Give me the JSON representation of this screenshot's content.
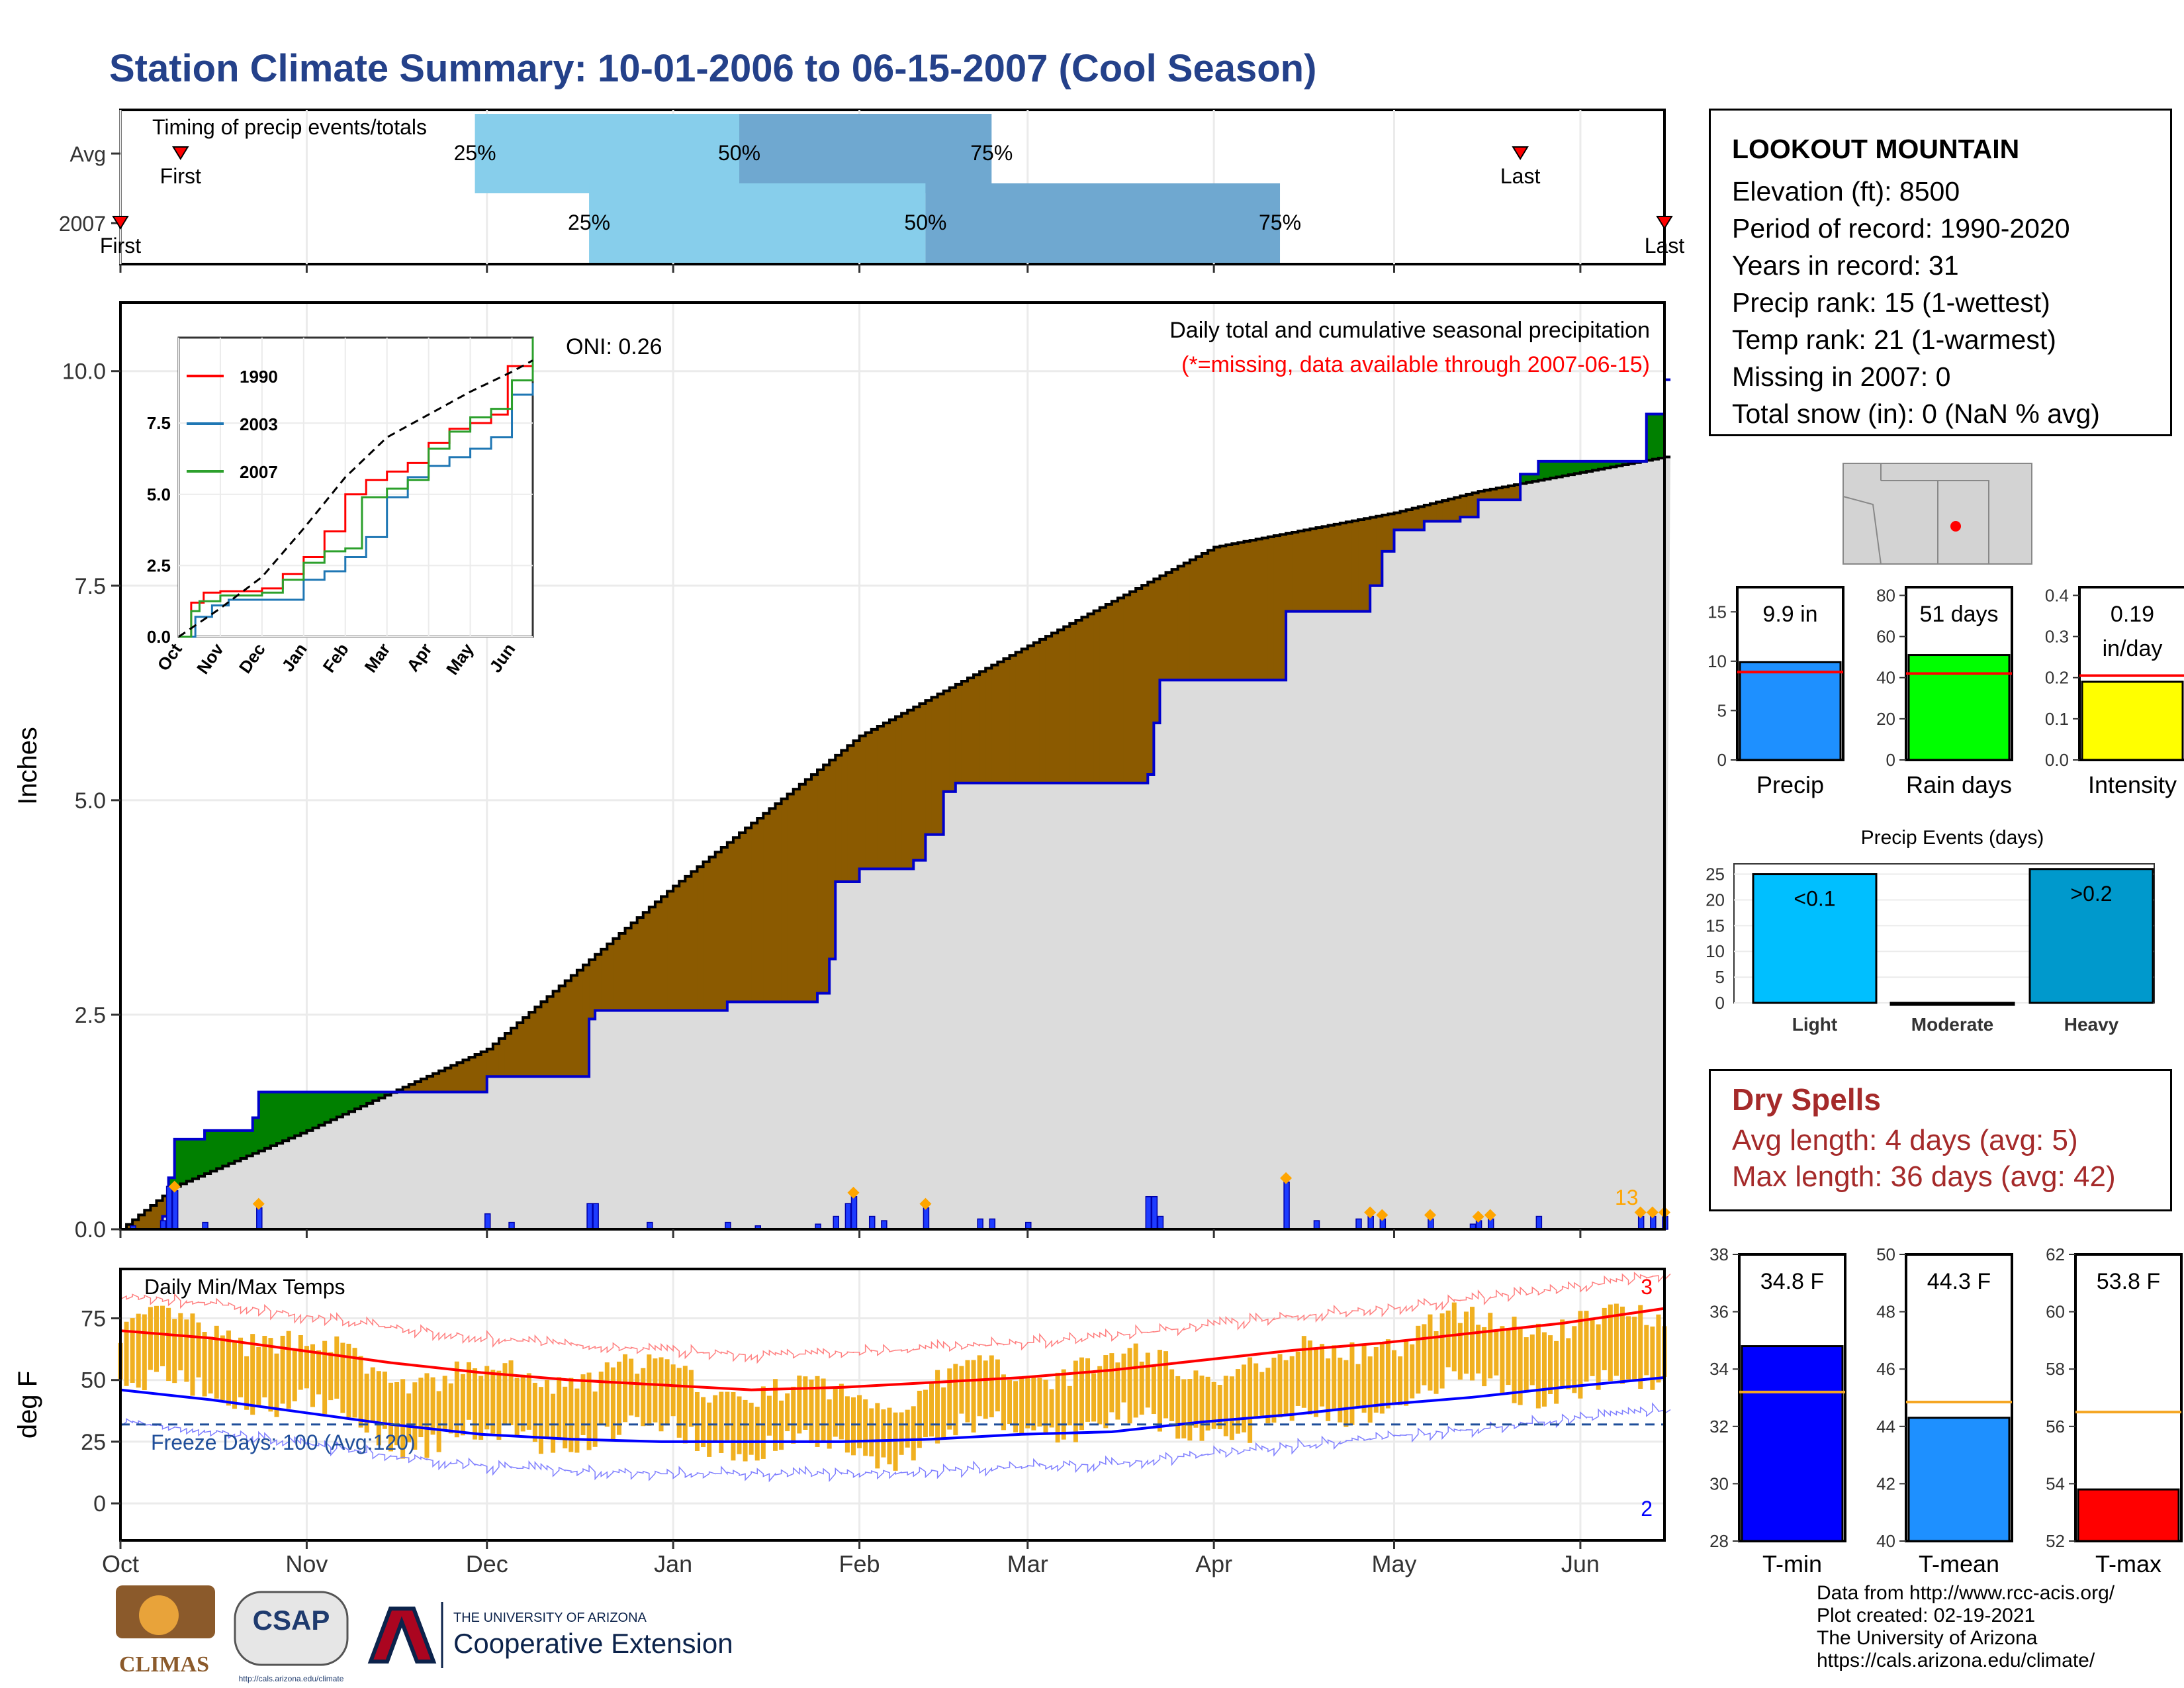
{
  "title": "Station Climate Summary: 10-01-2006 to 06-15-2007 (Cool Season)",
  "station": {
    "name": "LOOKOUT MOUNTAIN",
    "lines": [
      "Elevation (ft): 8500",
      "Period of record: 1990-2020",
      "Years in record: 31",
      "Precip rank: 15 (1-wettest)",
      "Temp rank: 21 (1-warmest)",
      "Missing in 2007: 0",
      "Total snow (in): 0 (NaN % avg)"
    ]
  },
  "dry_spells": {
    "title": "Dry Spells",
    "avg": "Avg length: 4 days (avg: 5)",
    "max": "Max length: 36 days (avg: 42)"
  },
  "footer": {
    "lines": [
      "Data from http://www.rcc-acis.org/",
      "Plot created: 02-19-2021",
      "The University of Arizona",
      "https://cals.arizona.edu/climate/"
    ],
    "logos": {
      "climas": "CLIMAS",
      "csap": "CSAP",
      "csap_url": "http://cals.arizona.edu/climate",
      "ua_small": "THE UNIVERSITY OF ARIZONA",
      "ua_big": "Cooperative Extension"
    }
  },
  "colors": {
    "title": "#24418a",
    "q1": "#87ceeb",
    "q2": "#6fa8d0",
    "above": "#8b5a00",
    "below": "#008000",
    "cum2007": "#0000cd",
    "fill": "#dcdcdc",
    "bars": "#1e3cff",
    "marker": "#ffa500",
    "tbar": "#f0b020",
    "tmax": "#ff0000",
    "tmin": "#0000ff"
  },
  "chart_data": [
    {
      "type": "bar",
      "name": "timing",
      "title": "Timing of precip events/totals",
      "rows": [
        "Avg",
        "2007"
      ],
      "labels": {
        "first": "First",
        "last": "Last",
        "p25": "25%",
        "p50": "50%",
        "p75": "75%"
      },
      "avg": {
        "first": "2006-10-11",
        "p25": "2006-11-29",
        "p50": "2007-01-12",
        "p75": "2007-02-23",
        "last": "2007-05-22"
      },
      "y2007": {
        "first": "2006-10-01",
        "p25": "2006-12-18",
        "p50": "2007-02-12",
        "p75": "2007-04-12",
        "last": "2007-06-15"
      }
    },
    {
      "type": "area",
      "name": "precip",
      "title": "Daily total and cumulative seasonal precipitation",
      "subtitle": "(*=missing, data available through 2007-06-15)",
      "oni": "ONI: 0.26",
      "ylabel": "Inches",
      "ylim": [
        0,
        10.8
      ],
      "yticks": [
        0,
        2.5,
        5,
        7.5,
        10
      ],
      "ytick_labels": [
        "0.0",
        "2.5",
        "5.0",
        "7.5",
        "10.0"
      ],
      "xlim": [
        "2006-10-01",
        "2007-06-15"
      ],
      "xtick_labels": [
        "Oct",
        "Nov",
        "Dec",
        "Jan",
        "Feb",
        "Mar",
        "Apr",
        "May",
        "Jun"
      ],
      "xtick_dates": [
        "2006-10-01",
        "2006-11-01",
        "2006-12-01",
        "2007-01-01",
        "2007-02-01",
        "2007-03-01",
        "2007-04-01",
        "2007-05-01",
        "2007-06-01"
      ],
      "avg_cumulative": {
        "x": [
          "2006-10-01",
          "2006-10-10",
          "2006-11-01",
          "2006-12-01",
          "2007-01-01",
          "2007-02-01",
          "2007-03-01",
          "2007-04-01",
          "2007-05-01",
          "2007-05-15",
          "2007-06-15"
        ],
        "y": [
          0,
          0.5,
          1.15,
          2.1,
          4.0,
          5.75,
          6.8,
          7.95,
          8.35,
          8.6,
          9.0
        ]
      },
      "cumulative_2007": {
        "x": [
          "2006-10-01",
          "2006-10-08",
          "2006-10-09",
          "2006-10-10",
          "2006-10-15",
          "2006-10-23",
          "2006-10-24",
          "2006-11-01",
          "2006-11-30",
          "2006-12-01",
          "2006-12-18",
          "2006-12-19",
          "2007-01-10",
          "2007-01-25",
          "2007-01-27",
          "2007-01-28",
          "2007-02-01",
          "2007-02-10",
          "2007-02-12",
          "2007-02-15",
          "2007-02-17",
          "2007-03-21",
          "2007-03-22",
          "2007-03-23",
          "2007-04-12",
          "2007-04-13",
          "2007-04-27",
          "2007-04-29",
          "2007-05-01",
          "2007-05-06",
          "2007-05-12",
          "2007-05-15",
          "2007-05-22",
          "2007-05-25",
          "2007-06-10",
          "2007-06-12",
          "2007-06-15"
        ],
        "y": [
          0,
          0.15,
          0.6,
          1.05,
          1.15,
          1.3,
          1.6,
          1.6,
          1.6,
          1.78,
          2.45,
          2.55,
          2.65,
          2.75,
          3.15,
          4.05,
          4.2,
          4.3,
          4.6,
          5.1,
          5.2,
          5.3,
          5.9,
          6.4,
          6.4,
          7.2,
          7.5,
          7.9,
          8.15,
          8.25,
          8.3,
          8.5,
          8.8,
          8.95,
          8.95,
          9.5,
          9.9
        ]
      },
      "daily_events": [
        {
          "date": "2006-10-03",
          "in": 0.04
        },
        {
          "date": "2006-10-08",
          "in": 0.1
        },
        {
          "date": "2006-10-09",
          "in": 0.5
        },
        {
          "date": "2006-10-10",
          "in": 0.45
        },
        {
          "date": "2006-10-15",
          "in": 0.08
        },
        {
          "date": "2006-10-24",
          "in": 0.25
        },
        {
          "date": "2006-12-01",
          "in": 0.18
        },
        {
          "date": "2006-12-05",
          "in": 0.08
        },
        {
          "date": "2006-12-18",
          "in": 0.3
        },
        {
          "date": "2006-12-19",
          "in": 0.3
        },
        {
          "date": "2006-12-28",
          "in": 0.08
        },
        {
          "date": "2007-01-10",
          "in": 0.08
        },
        {
          "date": "2007-01-15",
          "in": 0.04
        },
        {
          "date": "2007-01-25",
          "in": 0.06
        },
        {
          "date": "2007-01-28",
          "in": 0.15
        },
        {
          "date": "2007-01-30",
          "in": 0.3
        },
        {
          "date": "2007-01-31",
          "in": 0.38
        },
        {
          "date": "2007-02-03",
          "in": 0.15
        },
        {
          "date": "2007-02-05",
          "in": 0.1
        },
        {
          "date": "2007-02-12",
          "in": 0.25
        },
        {
          "date": "2007-02-21",
          "in": 0.12
        },
        {
          "date": "2007-02-23",
          "in": 0.12
        },
        {
          "date": "2007-03-01",
          "in": 0.08
        },
        {
          "date": "2007-03-21",
          "in": 0.38
        },
        {
          "date": "2007-03-22",
          "in": 0.38
        },
        {
          "date": "2007-03-23",
          "in": 0.15
        },
        {
          "date": "2007-04-13",
          "in": 0.55
        },
        {
          "date": "2007-04-18",
          "in": 0.1
        },
        {
          "date": "2007-04-25",
          "in": 0.12
        },
        {
          "date": "2007-04-27",
          "in": 0.15
        },
        {
          "date": "2007-04-29",
          "in": 0.12
        },
        {
          "date": "2007-05-07",
          "in": 0.12
        },
        {
          "date": "2007-05-14",
          "in": 0.06
        },
        {
          "date": "2007-05-15",
          "in": 0.1
        },
        {
          "date": "2007-05-17",
          "in": 0.12
        },
        {
          "date": "2007-05-25",
          "in": 0.15
        },
        {
          "date": "2007-06-11",
          "in": 0.15
        },
        {
          "date": "2007-06-13",
          "in": 0.15
        },
        {
          "date": "2007-06-15",
          "in": 0.15
        }
      ],
      "heavy_marker_dates": [
        "2006-10-10",
        "2006-10-24",
        "2007-01-31",
        "2007-02-12",
        "2007-04-13",
        "2007-04-27",
        "2007-04-29",
        "2007-05-07",
        "2007-05-15",
        "2007-05-17",
        "2007-06-11",
        "2007-06-13",
        "2007-06-15"
      ],
      "marker_count_label": "13"
    },
    {
      "type": "line",
      "name": "inset",
      "xtick_labels": [
        "Oct",
        "Nov",
        "Dec",
        "Jan",
        "Feb",
        "Mar",
        "Apr",
        "May",
        "Jun"
      ],
      "ylim": [
        0,
        10.5
      ],
      "yticks": [
        0,
        2.5,
        5,
        7.5
      ],
      "ytick_labels": [
        "0.0",
        "2.5",
        "5.0",
        "7.5"
      ],
      "series": [
        {
          "name": "1990",
          "color": "#ff0000",
          "x": [
            0,
            0.3,
            0.6,
            1.0,
            1.5,
            2.0,
            2.5,
            3.0,
            3.5,
            4.0,
            4.5,
            5.0,
            5.5,
            6.0,
            6.5,
            7.0,
            7.5,
            7.9,
            8.5
          ],
          "y": [
            0,
            1.2,
            1.55,
            1.6,
            1.6,
            1.7,
            2.2,
            2.8,
            3.7,
            5.0,
            5.5,
            5.8,
            6.1,
            6.8,
            7.3,
            7.5,
            7.8,
            9.5,
            9.5
          ]
        },
        {
          "name": "2003",
          "color": "#1f77b4",
          "x": [
            0,
            0.4,
            0.8,
            1.2,
            2.0,
            2.5,
            3.0,
            3.5,
            4.0,
            4.5,
            5.0,
            5.5,
            6.0,
            6.5,
            7.0,
            7.5,
            8.0,
            8.5
          ],
          "y": [
            0,
            0.7,
            1.1,
            1.3,
            1.3,
            1.3,
            2.0,
            2.3,
            2.8,
            3.5,
            4.9,
            5.6,
            6.0,
            6.3,
            6.6,
            7.0,
            8.5,
            8.9
          ]
        },
        {
          "name": "2007",
          "color": "#2ca02c",
          "x": [
            0,
            0.3,
            0.5,
            1.0,
            2.0,
            2.5,
            3.0,
            3.5,
            4.0,
            4.4,
            5.0,
            5.5,
            6.0,
            6.5,
            7.0,
            7.5,
            8.0,
            8.5
          ],
          "y": [
            0,
            0.9,
            1.25,
            1.45,
            1.55,
            2.0,
            2.6,
            3.0,
            3.1,
            4.9,
            5.2,
            5.5,
            6.6,
            7.2,
            7.7,
            8.0,
            9.0,
            10.5
          ]
        },
        {
          "name": "avg",
          "color": "#000000",
          "dashed": true,
          "x": [
            0,
            1,
            2,
            3,
            4,
            5,
            6,
            7,
            8,
            8.5
          ],
          "y": [
            0,
            1.0,
            2.1,
            3.8,
            5.6,
            7.0,
            7.8,
            8.6,
            9.3,
            9.7
          ]
        }
      ]
    },
    {
      "type": "bar",
      "name": "temps",
      "title": "Daily Min/Max Temps",
      "ylabel": "deg F",
      "ylim": [
        -15,
        95
      ],
      "yticks": [
        0,
        25,
        50,
        75
      ],
      "ytick_labels": [
        "0",
        "25",
        "50",
        "75"
      ],
      "xtick_labels": [
        "Oct",
        "Nov",
        "Dec",
        "Jan",
        "Feb",
        "Mar",
        "Apr",
        "May",
        "Jun"
      ],
      "freeze_line": 32,
      "freeze_label": "Freeze Days: 100 (Avg:120)",
      "record_high_count": "3",
      "record_low_count": "2",
      "tmax_avg": {
        "x": [
          0,
          15,
          30,
          45,
          60,
          75,
          90,
          105,
          120,
          135,
          150,
          165,
          180,
          195,
          210,
          225,
          240,
          257
        ],
        "y": [
          70,
          67,
          62,
          57,
          53,
          50,
          48,
          46,
          47,
          49,
          51,
          54,
          58,
          62,
          65,
          69,
          73,
          79
        ]
      },
      "tmin_avg": {
        "x": [
          0,
          15,
          30,
          45,
          60,
          75,
          90,
          105,
          120,
          135,
          150,
          165,
          180,
          195,
          210,
          225,
          240,
          257
        ],
        "y": [
          46,
          42,
          37,
          32,
          28,
          26,
          25,
          25,
          25,
          26,
          28,
          29,
          33,
          36,
          40,
          43,
          47,
          51
        ]
      }
    },
    {
      "type": "bar",
      "name": "summary_precip",
      "categories": [
        "Precip",
        "Rain days",
        "Intensity"
      ],
      "values": [
        9.9,
        51,
        0.19
      ],
      "averages": [
        8.9,
        42,
        0.205
      ],
      "value_labels": [
        "9.9 in",
        "51 days",
        "0.19 in/day"
      ],
      "ylims": [
        [
          0,
          17.5
        ],
        [
          0,
          84
        ],
        [
          0,
          0.42
        ]
      ],
      "yticks": [
        [
          0,
          5,
          10,
          15
        ],
        [
          0,
          20,
          40,
          60,
          80
        ],
        [
          0,
          0.1,
          0.2,
          0.3,
          0.4
        ]
      ],
      "ytick_labels": [
        [
          "0",
          "5",
          "10",
          "15"
        ],
        [
          "0",
          "20",
          "40",
          "60",
          "80"
        ],
        [
          "0.0",
          "0.1",
          "0.2",
          "0.3",
          "0.4"
        ]
      ],
      "bar_colors": [
        "#1e90ff",
        "#00ff00",
        "#ffff00"
      ]
    },
    {
      "type": "bar",
      "name": "precip_events",
      "title": "Precip Events (days)",
      "categories": [
        "Light",
        "Moderate",
        "Heavy"
      ],
      "values": [
        25,
        0,
        26
      ],
      "value_labels": [
        "<0.1",
        "",
        ">0.2"
      ],
      "ylim": [
        0,
        27
      ],
      "yticks": [
        0,
        5,
        10,
        15,
        20,
        25
      ],
      "ytick_labels": [
        "0",
        "5",
        "10",
        "15",
        "20",
        "25"
      ],
      "bar_colors": [
        "#00bfff",
        "#00bfff",
        "#0099cc"
      ]
    },
    {
      "type": "bar",
      "name": "summary_temp",
      "categories": [
        "T-min",
        "T-mean",
        "T-max"
      ],
      "values": [
        34.8,
        44.3,
        53.8
      ],
      "averages": [
        33.2,
        44.85,
        56.5
      ],
      "value_labels": [
        "34.8 F",
        "44.3 F",
        "53.8 F"
      ],
      "ylims": [
        [
          28,
          38
        ],
        [
          40,
          50
        ],
        [
          52,
          62
        ]
      ],
      "yticks": [
        [
          28,
          30,
          32,
          34,
          36,
          38
        ],
        [
          40,
          42,
          44,
          46,
          48,
          50
        ],
        [
          52,
          54,
          56,
          58,
          60,
          62
        ]
      ],
      "ytick_labels": [
        [
          "28",
          "30",
          "32",
          "34",
          "36",
          "38"
        ],
        [
          "40",
          "42",
          "44",
          "46",
          "48",
          "50"
        ],
        [
          "52",
          "54",
          "56",
          "58",
          "60",
          "62"
        ]
      ],
      "bar_colors": [
        "#0000ff",
        "#1e90ff",
        "#ff0000"
      ]
    }
  ]
}
